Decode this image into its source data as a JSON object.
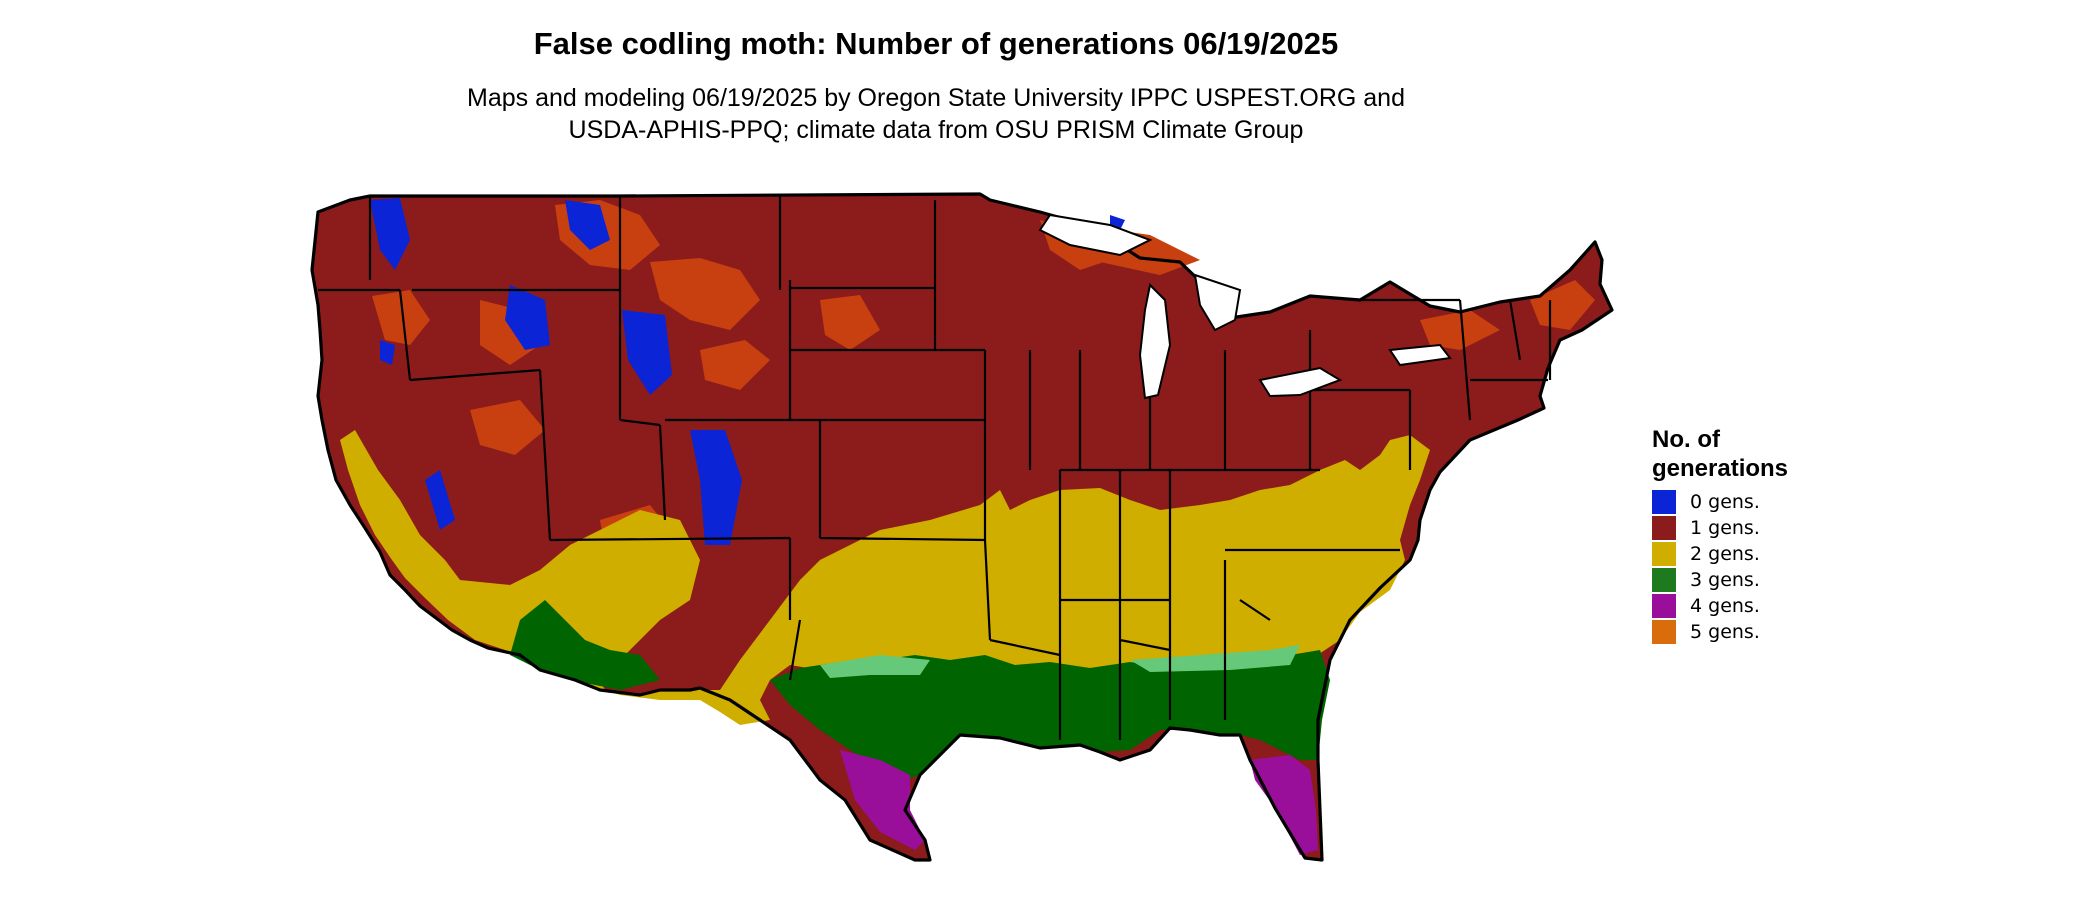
{
  "title": "False codling moth: Number of generations 06/19/2025",
  "subtitle_line1": "Maps and modeling 06/19/2025 by Oregon State University IPPC USPEST.ORG and",
  "subtitle_line2": "USDA-APHIS-PPQ; climate data from OSU PRISM Climate Group",
  "legend": {
    "title_line1": "No. of",
    "title_line2": "generations",
    "items": [
      {
        "label": "0 gens.",
        "color": "#0b24d6"
      },
      {
        "label": "1 gens.",
        "color": "#8c1b1b"
      },
      {
        "label": "2 gens.",
        "color": "#cfae00"
      },
      {
        "label": "3 gens.",
        "color": "#1f7a1f"
      },
      {
        "label": "4 gens.",
        "color": "#9a0f9a"
      },
      {
        "label": "5 gens.",
        "color": "#d96d0c"
      }
    ]
  },
  "map_colors": {
    "one_gen": "#8c1b1b",
    "one_gen_light": "#c8400f",
    "two_gen": "#cfae00",
    "three_gen": "#006400",
    "three_gen_light": "#66c97a",
    "four_gen": "#9a0f9a",
    "zero_gen": "#0b24d6",
    "border": "#000000"
  }
}
